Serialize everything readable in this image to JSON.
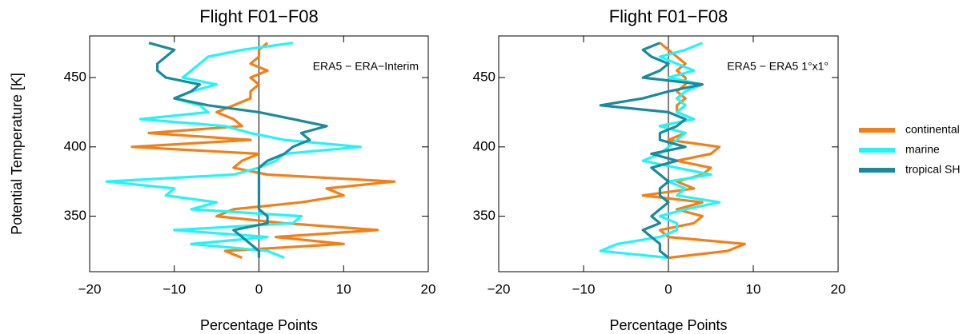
{
  "chart_data": [
    {
      "type": "line",
      "title": "Flight F01−F08",
      "annotation": "ERA5 − ERA−Interim",
      "xlabel": "Percentage Points",
      "ylabel": "Potential Temperature [K]",
      "xlim": [
        -20,
        20
      ],
      "ylim": [
        310,
        480
      ],
      "xticks": [
        {
          "value": -20,
          "label": "−20"
        },
        {
          "value": -10,
          "label": "−10"
        },
        0,
        10,
        20
      ],
      "yticks": [
        350,
        400,
        450
      ],
      "y": [
        320,
        325,
        330,
        335,
        340,
        345,
        350,
        355,
        360,
        365,
        370,
        375,
        380,
        385,
        390,
        395,
        400,
        405,
        410,
        415,
        420,
        425,
        430,
        435,
        440,
        445,
        450,
        455,
        460,
        465,
        470,
        475
      ],
      "series": [
        {
          "name": "continental",
          "color": "#f28018",
          "values": [
            -2,
            -4,
            10,
            2,
            14,
            3,
            -5,
            -3,
            5,
            10,
            8,
            16,
            1,
            -3,
            -2,
            0,
            -15,
            -1,
            -13,
            -2,
            -3,
            -5,
            -3,
            -1,
            -1,
            0,
            -1,
            1,
            -1,
            0,
            0,
            1
          ]
        },
        {
          "name": "marine",
          "color": "#22f4f8",
          "values": [
            3,
            1,
            -8,
            1,
            -10,
            4,
            5,
            -8,
            -5,
            -11,
            -10,
            -18,
            -3,
            0,
            2,
            3,
            12,
            3,
            -1,
            -4,
            -14,
            -6,
            -7,
            -10,
            -8,
            -5,
            -9,
            -8,
            -7,
            -6,
            -2,
            4
          ]
        },
        {
          "name": "tropical SH",
          "color": "#1a8a9c",
          "values": [
            0,
            0,
            -1,
            -2,
            -3,
            1,
            1,
            0,
            0,
            0,
            0,
            0,
            0,
            0,
            1,
            3,
            4,
            6,
            5,
            8,
            4,
            0,
            -6,
            -10,
            -8,
            -7,
            -11,
            -12,
            -12,
            -11,
            -10,
            -13
          ]
        }
      ]
    },
    {
      "type": "line",
      "title": "Flight F01−F08",
      "annotation": "ERA5 − ERA5 1°x1°",
      "xlabel": "Percentage Points",
      "xlim": [
        -20,
        20
      ],
      "ylim": [
        310,
        480
      ],
      "xticks": [
        {
          "value": -20,
          "label": "−20"
        },
        {
          "value": -10,
          "label": "−10"
        },
        0,
        10,
        20
      ],
      "yticks": [
        350,
        400,
        450
      ],
      "y": [
        320,
        325,
        330,
        335,
        340,
        345,
        350,
        355,
        360,
        365,
        370,
        375,
        380,
        385,
        390,
        395,
        400,
        405,
        410,
        415,
        420,
        425,
        430,
        435,
        440,
        445,
        450,
        455,
        460,
        465,
        470,
        475
      ],
      "series": [
        {
          "color": "#f28018",
          "values": [
            0,
            7,
            9,
            0,
            -1,
            3,
            4,
            1,
            4,
            -3,
            3,
            1,
            4,
            5,
            1,
            5,
            6,
            0,
            2,
            -1,
            3,
            1,
            1,
            2,
            1,
            2,
            2,
            1,
            2,
            1,
            0,
            -1
          ]
        },
        {
          "color": "#22f4f8",
          "values": [
            0,
            -8,
            -6,
            -1,
            1,
            1,
            -1,
            2,
            6,
            1,
            2,
            0,
            5,
            1,
            -3,
            -1,
            0,
            1,
            2,
            -1,
            3,
            1,
            2,
            1,
            2,
            4,
            0,
            3,
            1,
            -1,
            2,
            4
          ]
        },
        {
          "color": "#1a8a9c",
          "values": [
            0,
            -1,
            -1,
            -2,
            -3,
            -1,
            -2,
            -1,
            0,
            -1,
            -1,
            0,
            -1,
            -2,
            1,
            -2,
            2,
            -1,
            -1,
            1,
            2,
            0,
            -8,
            -3,
            0,
            4,
            -3,
            -1,
            0,
            -2,
            -3,
            -1
          ]
        }
      ]
    }
  ]
}
